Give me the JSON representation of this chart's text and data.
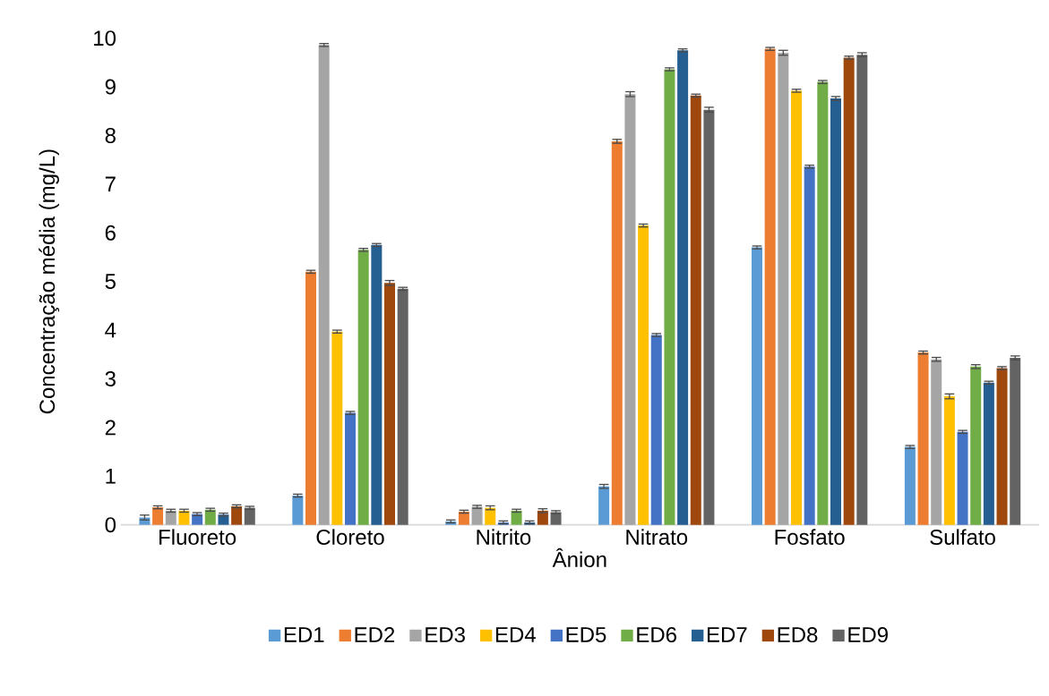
{
  "chart_data": {
    "type": "bar",
    "xlabel": "Ânion",
    "ylabel": "Concentração  média (mg/L)",
    "categories": [
      "Fluoreto",
      "Cloreto",
      "Nitrito",
      "Nitrato",
      "Fosfato",
      "Sulfato"
    ],
    "series": [
      {
        "name": "ED1",
        "color": "#5b9bd5",
        "values": [
          0.15,
          0.6,
          0.07,
          0.79,
          5.7,
          1.6
        ],
        "errors": [
          0.05,
          0.03,
          0.03,
          0.04,
          0.03,
          0.03
        ]
      },
      {
        "name": "ED2",
        "color": "#ed7d31",
        "values": [
          0.36,
          5.2,
          0.27,
          7.88,
          9.78,
          3.54
        ],
        "errors": [
          0.03,
          0.03,
          0.03,
          0.04,
          0.03,
          0.03
        ]
      },
      {
        "name": "ED3",
        "color": "#a5a5a5",
        "values": [
          0.29,
          9.86,
          0.37,
          8.85,
          9.7,
          3.4
        ],
        "errors": [
          0.03,
          0.03,
          0.03,
          0.05,
          0.05,
          0.04
        ]
      },
      {
        "name": "ED4",
        "color": "#ffc000",
        "values": [
          0.29,
          3.97,
          0.35,
          6.15,
          8.92,
          2.64
        ],
        "errors": [
          0.03,
          0.03,
          0.04,
          0.03,
          0.03,
          0.05
        ]
      },
      {
        "name": "ED5",
        "color": "#4472c4",
        "values": [
          0.22,
          2.3,
          0.05,
          3.9,
          7.36,
          1.91
        ],
        "errors": [
          0.03,
          0.03,
          0.03,
          0.03,
          0.03,
          0.03
        ]
      },
      {
        "name": "ED6",
        "color": "#70ad47",
        "values": [
          0.31,
          5.65,
          0.29,
          9.36,
          9.1,
          3.25
        ],
        "errors": [
          0.03,
          0.03,
          0.03,
          0.03,
          0.03,
          0.04
        ]
      },
      {
        "name": "ED7",
        "color": "#255e91",
        "values": [
          0.21,
          5.75,
          0.05,
          9.75,
          8.76,
          2.92
        ],
        "errors": [
          0.03,
          0.03,
          0.03,
          0.03,
          0.04,
          0.03
        ]
      },
      {
        "name": "ED8",
        "color": "#9e480e",
        "values": [
          0.38,
          4.97,
          0.29,
          8.82,
          9.6,
          3.22
        ],
        "errors": [
          0.03,
          0.05,
          0.04,
          0.03,
          0.03,
          0.03
        ]
      },
      {
        "name": "ED9",
        "color": "#636363",
        "values": [
          0.35,
          4.85,
          0.26,
          8.53,
          9.66,
          3.43
        ],
        "errors": [
          0.03,
          0.03,
          0.03,
          0.05,
          0.04,
          0.04
        ]
      }
    ],
    "ylim": [
      0,
      10
    ],
    "yticks": [
      0,
      1,
      2,
      3,
      4,
      5,
      6,
      7,
      8,
      9,
      10
    ],
    "legend": "bottom"
  }
}
